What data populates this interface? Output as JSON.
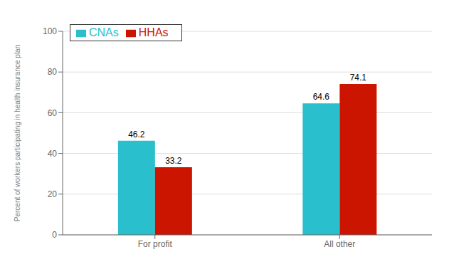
{
  "chart_data": {
    "type": "bar",
    "categories": [
      "For profit",
      "All other"
    ],
    "series": [
      {
        "name": "CNAs",
        "color": "#29BFCC",
        "values": [
          46.2,
          64.6
        ]
      },
      {
        "name": "HHAs",
        "color": "#CC1500",
        "values": [
          33.2,
          74.1
        ]
      }
    ],
    "ylabel": "Percent of workers participating in health insurance plan",
    "ylim": [
      0,
      100
    ],
    "yticks": [
      0,
      20,
      40,
      60,
      80,
      100
    ],
    "grid": true,
    "legend": "upper left",
    "data_labels": true
  }
}
